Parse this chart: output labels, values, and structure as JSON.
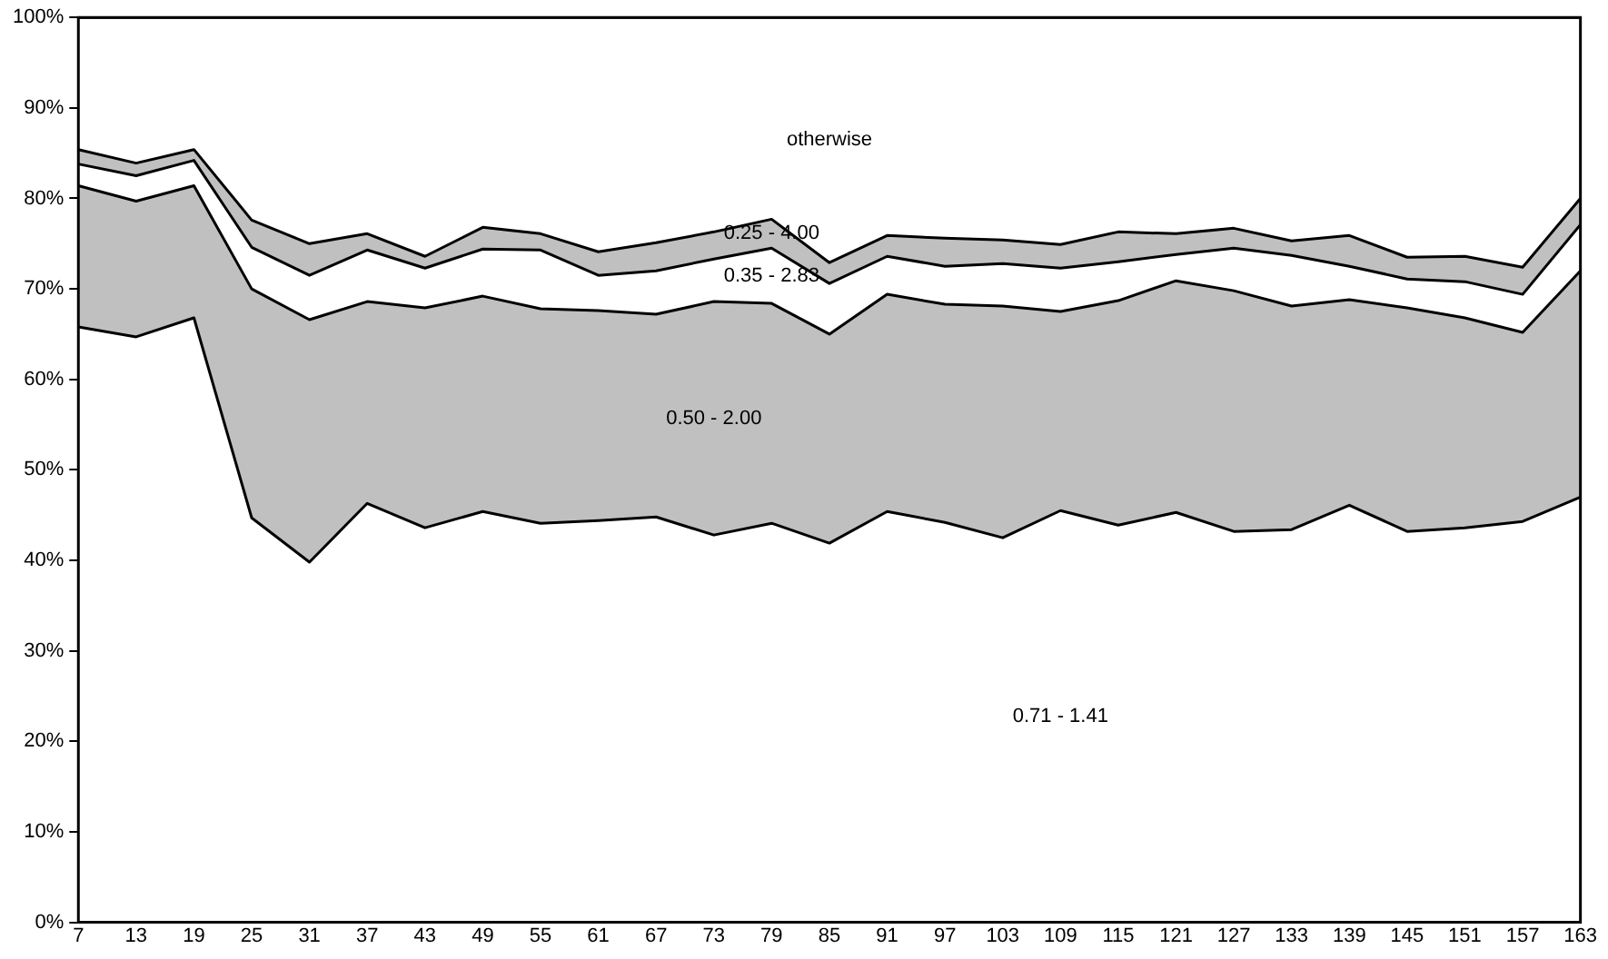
{
  "chart_data": {
    "type": "area",
    "stacked": true,
    "legend": false,
    "categories": [
      "7",
      "13",
      "19",
      "25",
      "31",
      "37",
      "43",
      "49",
      "55",
      "61",
      "67",
      "73",
      "79",
      "85",
      "91",
      "97",
      "103",
      "109",
      "115",
      "121",
      "127",
      "133",
      "139",
      "145",
      "151",
      "157",
      "163"
    ],
    "ylim": [
      0,
      100
    ],
    "yticks": [
      {
        "value": 0,
        "label": "0%"
      },
      {
        "value": 10,
        "label": "10%"
      },
      {
        "value": 20,
        "label": "20%"
      },
      {
        "value": 30,
        "label": "30%"
      },
      {
        "value": 40,
        "label": "40%"
      },
      {
        "value": 50,
        "label": "50%"
      },
      {
        "value": 60,
        "label": "60%"
      },
      {
        "value": 70,
        "label": "70%"
      },
      {
        "value": 80,
        "label": "80%"
      },
      {
        "value": 90,
        "label": "90%"
      },
      {
        "value": 100,
        "label": "100%"
      }
    ],
    "series": [
      {
        "name": "0.71 - 1.41",
        "color": "#ffffff",
        "values": [
          65.8,
          64.7,
          66.8,
          44.7,
          39.8,
          46.3,
          43.6,
          45.4,
          44.1,
          44.4,
          44.8,
          42.8,
          44.1,
          41.9,
          45.4,
          44.2,
          42.5,
          45.5,
          43.9,
          45.3,
          43.2,
          43.4,
          46.1,
          43.2,
          43.6,
          44.3,
          47.0
        ]
      },
      {
        "name": "0.50 - 2.00",
        "color": "#c0c0c0",
        "values": [
          15.6,
          15.0,
          14.6,
          25.3,
          26.8,
          22.3,
          24.3,
          23.8,
          23.7,
          23.2,
          22.4,
          25.8,
          24.3,
          23.1,
          24.0,
          24.1,
          25.6,
          22.0,
          24.8,
          25.6,
          26.6,
          24.7,
          22.7,
          24.7,
          23.2,
          20.9,
          25.0
        ]
      },
      {
        "name": "0.35 - 2.83",
        "color": "#ffffff",
        "values": [
          2.4,
          2.8,
          2.8,
          4.6,
          4.9,
          5.7,
          4.4,
          5.2,
          6.5,
          3.9,
          4.8,
          4.7,
          6.1,
          5.6,
          4.2,
          4.2,
          4.7,
          4.8,
          4.3,
          2.9,
          4.7,
          5.6,
          3.7,
          3.2,
          4.0,
          4.2,
          5.1
        ]
      },
      {
        "name": "0.25 - 4.00",
        "color": "#c0c0c0",
        "values": [
          1.6,
          1.4,
          1.2,
          3.0,
          3.5,
          1.8,
          1.3,
          2.4,
          1.8,
          2.6,
          3.1,
          3.0,
          3.2,
          2.3,
          2.3,
          3.1,
          2.6,
          2.6,
          3.3,
          2.3,
          2.2,
          1.6,
          3.4,
          2.4,
          2.8,
          3.0,
          2.9
        ]
      },
      {
        "name": "otherwise",
        "color": "#ffffff",
        "values": [
          14.6,
          16.1,
          14.6,
          22.4,
          25.0,
          23.9,
          26.4,
          23.2,
          23.9,
          25.9,
          24.9,
          23.7,
          22.3,
          27.1,
          24.1,
          24.4,
          24.6,
          25.1,
          23.7,
          23.9,
          23.3,
          24.7,
          24.1,
          26.5,
          26.4,
          27.6,
          20.0
        ]
      }
    ]
  }
}
